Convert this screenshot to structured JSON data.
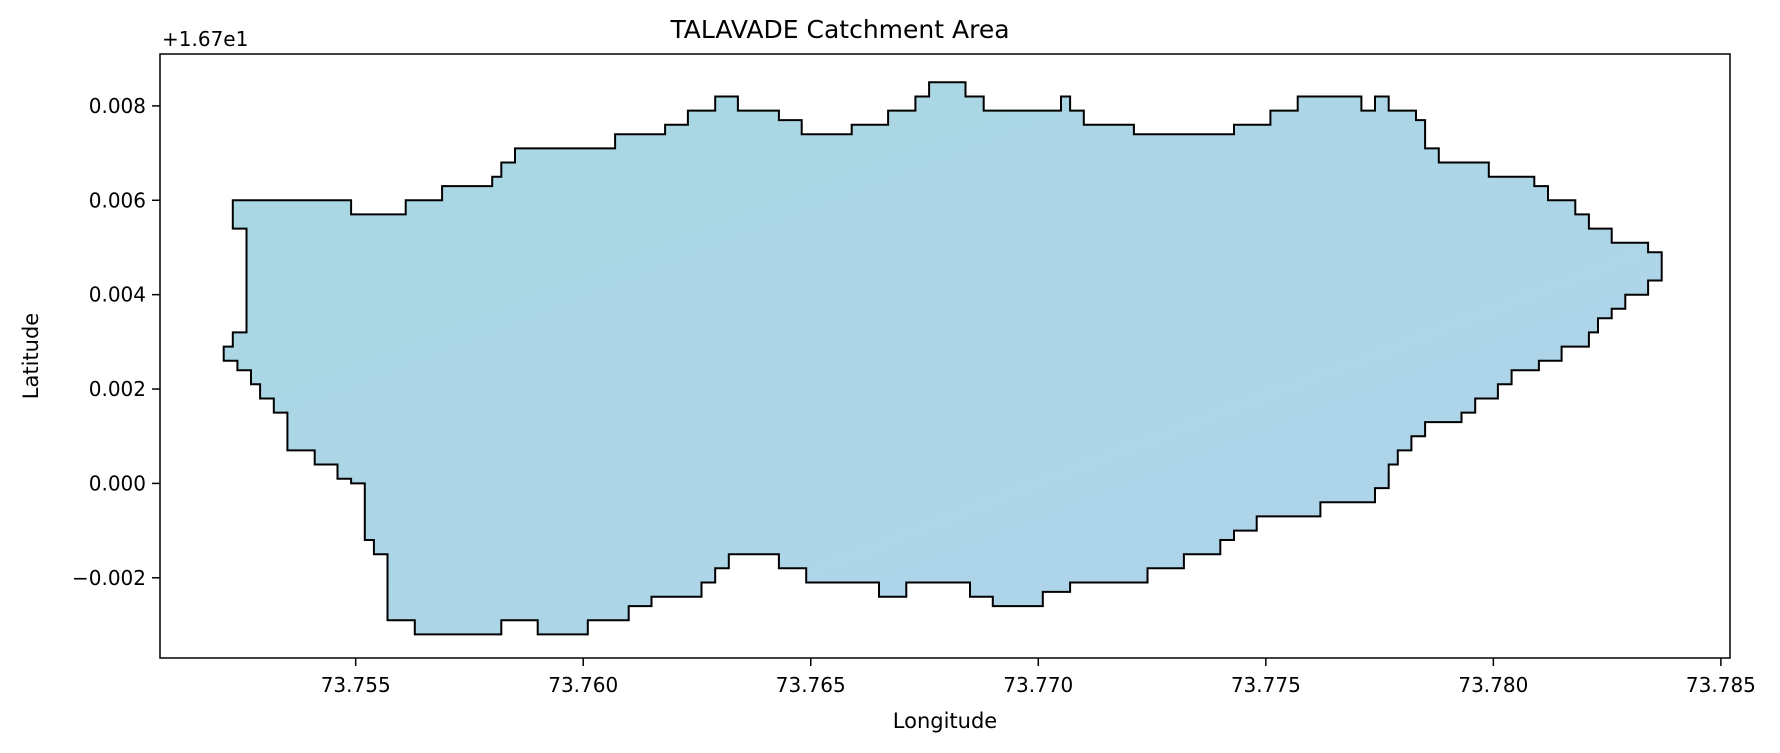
{
  "chart_data": {
    "type": "area",
    "title": "TALAVADE Catchment Area",
    "xlabel": "Longitude",
    "ylabel": "Latitude",
    "y_offset_label": "+1.67e1",
    "xlim": [
      73.7507,
      73.7852
    ],
    "ylim": [
      -0.0037,
      0.0091
    ],
    "x_ticks": [
      73.755,
      73.76,
      73.765,
      73.77,
      73.775,
      73.78,
      73.785
    ],
    "x_tick_labels": [
      "73.755",
      "73.760",
      "73.765",
      "73.770",
      "73.775",
      "73.780",
      "73.785"
    ],
    "y_ticks": [
      -0.002,
      0.0,
      0.002,
      0.004,
      0.006,
      0.008
    ],
    "y_tick_labels": [
      "−0.002",
      "0.000",
      "0.002",
      "0.004",
      "0.006",
      "0.008"
    ],
    "fill_colors": [
      "#a9d8e2",
      "#b0d3ec"
    ],
    "edge_color": "#000000",
    "grid": false,
    "legend": "none",
    "polygon": [
      [
        73.7523,
        0.006
      ],
      [
        73.7549,
        0.006
      ],
      [
        73.7549,
        0.0057
      ],
      [
        73.7561,
        0.0057
      ],
      [
        73.7561,
        0.006
      ],
      [
        73.7569,
        0.006
      ],
      [
        73.7569,
        0.0063
      ],
      [
        73.758,
        0.0063
      ],
      [
        73.758,
        0.0065
      ],
      [
        73.7582,
        0.0065
      ],
      [
        73.7582,
        0.0068
      ],
      [
        73.7585,
        0.0068
      ],
      [
        73.7585,
        0.0071
      ],
      [
        73.7607,
        0.0071
      ],
      [
        73.7607,
        0.0074
      ],
      [
        73.7618,
        0.0074
      ],
      [
        73.7618,
        0.0076
      ],
      [
        73.7623,
        0.0076
      ],
      [
        73.7623,
        0.0079
      ],
      [
        73.7629,
        0.0079
      ],
      [
        73.7629,
        0.0082
      ],
      [
        73.7634,
        0.0082
      ],
      [
        73.7634,
        0.0079
      ],
      [
        73.7643,
        0.0079
      ],
      [
        73.7643,
        0.0077
      ],
      [
        73.7648,
        0.0077
      ],
      [
        73.7648,
        0.0074
      ],
      [
        73.7659,
        0.0074
      ],
      [
        73.7659,
        0.0076
      ],
      [
        73.7667,
        0.0076
      ],
      [
        73.7667,
        0.0079
      ],
      [
        73.7673,
        0.0079
      ],
      [
        73.7673,
        0.0082
      ],
      [
        73.7676,
        0.0082
      ],
      [
        73.7676,
        0.0085
      ],
      [
        73.7684,
        0.0085
      ],
      [
        73.7684,
        0.0082
      ],
      [
        73.7688,
        0.0082
      ],
      [
        73.7688,
        0.0079
      ],
      [
        73.7705,
        0.0079
      ],
      [
        73.7705,
        0.0082
      ],
      [
        73.7707,
        0.0082
      ],
      [
        73.7707,
        0.0079
      ],
      [
        73.771,
        0.0079
      ],
      [
        73.771,
        0.0076
      ],
      [
        73.7721,
        0.0076
      ],
      [
        73.7721,
        0.0074
      ],
      [
        73.7743,
        0.0074
      ],
      [
        73.7743,
        0.0076
      ],
      [
        73.7751,
        0.0076
      ],
      [
        73.7751,
        0.0079
      ],
      [
        73.7757,
        0.0079
      ],
      [
        73.7757,
        0.0082
      ],
      [
        73.7771,
        0.0082
      ],
      [
        73.7771,
        0.0079
      ],
      [
        73.7774,
        0.0079
      ],
      [
        73.7774,
        0.0082
      ],
      [
        73.7777,
        0.0082
      ],
      [
        73.7777,
        0.0079
      ],
      [
        73.7783,
        0.0079
      ],
      [
        73.7783,
        0.0077
      ],
      [
        73.7785,
        0.0077
      ],
      [
        73.7785,
        0.0071
      ],
      [
        73.7788,
        0.0071
      ],
      [
        73.7788,
        0.0068
      ],
      [
        73.7799,
        0.0068
      ],
      [
        73.7799,
        0.0065
      ],
      [
        73.7809,
        0.0065
      ],
      [
        73.7809,
        0.0063
      ],
      [
        73.7812,
        0.0063
      ],
      [
        73.7812,
        0.006
      ],
      [
        73.7818,
        0.006
      ],
      [
        73.7818,
        0.0057
      ],
      [
        73.7821,
        0.0057
      ],
      [
        73.7821,
        0.0054
      ],
      [
        73.7826,
        0.0054
      ],
      [
        73.7826,
        0.0051
      ],
      [
        73.7834,
        0.0051
      ],
      [
        73.7834,
        0.0049
      ],
      [
        73.7837,
        0.0049
      ],
      [
        73.7837,
        0.0043
      ],
      [
        73.7834,
        0.0043
      ],
      [
        73.7834,
        0.004
      ],
      [
        73.7829,
        0.004
      ],
      [
        73.7829,
        0.0037
      ],
      [
        73.7826,
        0.0037
      ],
      [
        73.7826,
        0.0035
      ],
      [
        73.7823,
        0.0035
      ],
      [
        73.7823,
        0.0032
      ],
      [
        73.7821,
        0.0032
      ],
      [
        73.7821,
        0.0029
      ],
      [
        73.7815,
        0.0029
      ],
      [
        73.7815,
        0.0026
      ],
      [
        73.781,
        0.0026
      ],
      [
        73.781,
        0.0024
      ],
      [
        73.7804,
        0.0024
      ],
      [
        73.7804,
        0.0021
      ],
      [
        73.7801,
        0.0021
      ],
      [
        73.7801,
        0.0018
      ],
      [
        73.7796,
        0.0018
      ],
      [
        73.7796,
        0.0015
      ],
      [
        73.7793,
        0.0015
      ],
      [
        73.7793,
        0.0013
      ],
      [
        73.7785,
        0.0013
      ],
      [
        73.7785,
        0.001
      ],
      [
        73.7782,
        0.001
      ],
      [
        73.7782,
        0.0007
      ],
      [
        73.7779,
        0.0007
      ],
      [
        73.7779,
        0.0004
      ],
      [
        73.7777,
        0.0004
      ],
      [
        73.7777,
        -0.0001
      ],
      [
        73.7774,
        -0.0001
      ],
      [
        73.7774,
        -0.0004
      ],
      [
        73.7762,
        -0.0004
      ],
      [
        73.7762,
        -0.0007
      ],
      [
        73.7748,
        -0.0007
      ],
      [
        73.7748,
        -0.001
      ],
      [
        73.7743,
        -0.001
      ],
      [
        73.7743,
        -0.0012
      ],
      [
        73.774,
        -0.0012
      ],
      [
        73.774,
        -0.0015
      ],
      [
        73.7732,
        -0.0015
      ],
      [
        73.7732,
        -0.0018
      ],
      [
        73.7724,
        -0.0018
      ],
      [
        73.7724,
        -0.0021
      ],
      [
        73.7707,
        -0.0021
      ],
      [
        73.7707,
        -0.0023
      ],
      [
        73.7701,
        -0.0023
      ],
      [
        73.7701,
        -0.0026
      ],
      [
        73.769,
        -0.0026
      ],
      [
        73.769,
        -0.0024
      ],
      [
        73.7685,
        -0.0024
      ],
      [
        73.7685,
        -0.0021
      ],
      [
        73.7671,
        -0.0021
      ],
      [
        73.7671,
        -0.0024
      ],
      [
        73.7665,
        -0.0024
      ],
      [
        73.7665,
        -0.0021
      ],
      [
        73.7649,
        -0.0021
      ],
      [
        73.7649,
        -0.0018
      ],
      [
        73.7643,
        -0.0018
      ],
      [
        73.7643,
        -0.0015
      ],
      [
        73.7632,
        -0.0015
      ],
      [
        73.7632,
        -0.0018
      ],
      [
        73.7629,
        -0.0018
      ],
      [
        73.7629,
        -0.0021
      ],
      [
        73.7626,
        -0.0021
      ],
      [
        73.7626,
        -0.0024
      ],
      [
        73.7615,
        -0.0024
      ],
      [
        73.7615,
        -0.0026
      ],
      [
        73.761,
        -0.0026
      ],
      [
        73.761,
        -0.0029
      ],
      [
        73.7601,
        -0.0029
      ],
      [
        73.7601,
        -0.0032
      ],
      [
        73.759,
        -0.0032
      ],
      [
        73.759,
        -0.0029
      ],
      [
        73.7582,
        -0.0029
      ],
      [
        73.7582,
        -0.0032
      ],
      [
        73.7563,
        -0.0032
      ],
      [
        73.7563,
        -0.0029
      ],
      [
        73.7557,
        -0.0029
      ],
      [
        73.7557,
        -0.0015
      ],
      [
        73.7554,
        -0.0015
      ],
      [
        73.7554,
        -0.0012
      ],
      [
        73.7552,
        -0.0012
      ],
      [
        73.7552,
        0.0
      ],
      [
        73.7549,
        0.0
      ],
      [
        73.7549,
        0.0001
      ],
      [
        73.7546,
        0.0001
      ],
      [
        73.7546,
        0.0004
      ],
      [
        73.7541,
        0.0004
      ],
      [
        73.7541,
        0.0007
      ],
      [
        73.7535,
        0.0007
      ],
      [
        73.7535,
        0.0015
      ],
      [
        73.7532,
        0.0015
      ],
      [
        73.7532,
        0.0018
      ],
      [
        73.7529,
        0.0018
      ],
      [
        73.7529,
        0.0021
      ],
      [
        73.7527,
        0.0021
      ],
      [
        73.7527,
        0.0024
      ],
      [
        73.7524,
        0.0024
      ],
      [
        73.7524,
        0.0026
      ],
      [
        73.7521,
        0.0026
      ],
      [
        73.7521,
        0.0029
      ],
      [
        73.7523,
        0.0029
      ],
      [
        73.7523,
        0.0032
      ],
      [
        73.7526,
        0.0032
      ],
      [
        73.7526,
        0.0054
      ],
      [
        73.7523,
        0.0054
      ]
    ]
  }
}
